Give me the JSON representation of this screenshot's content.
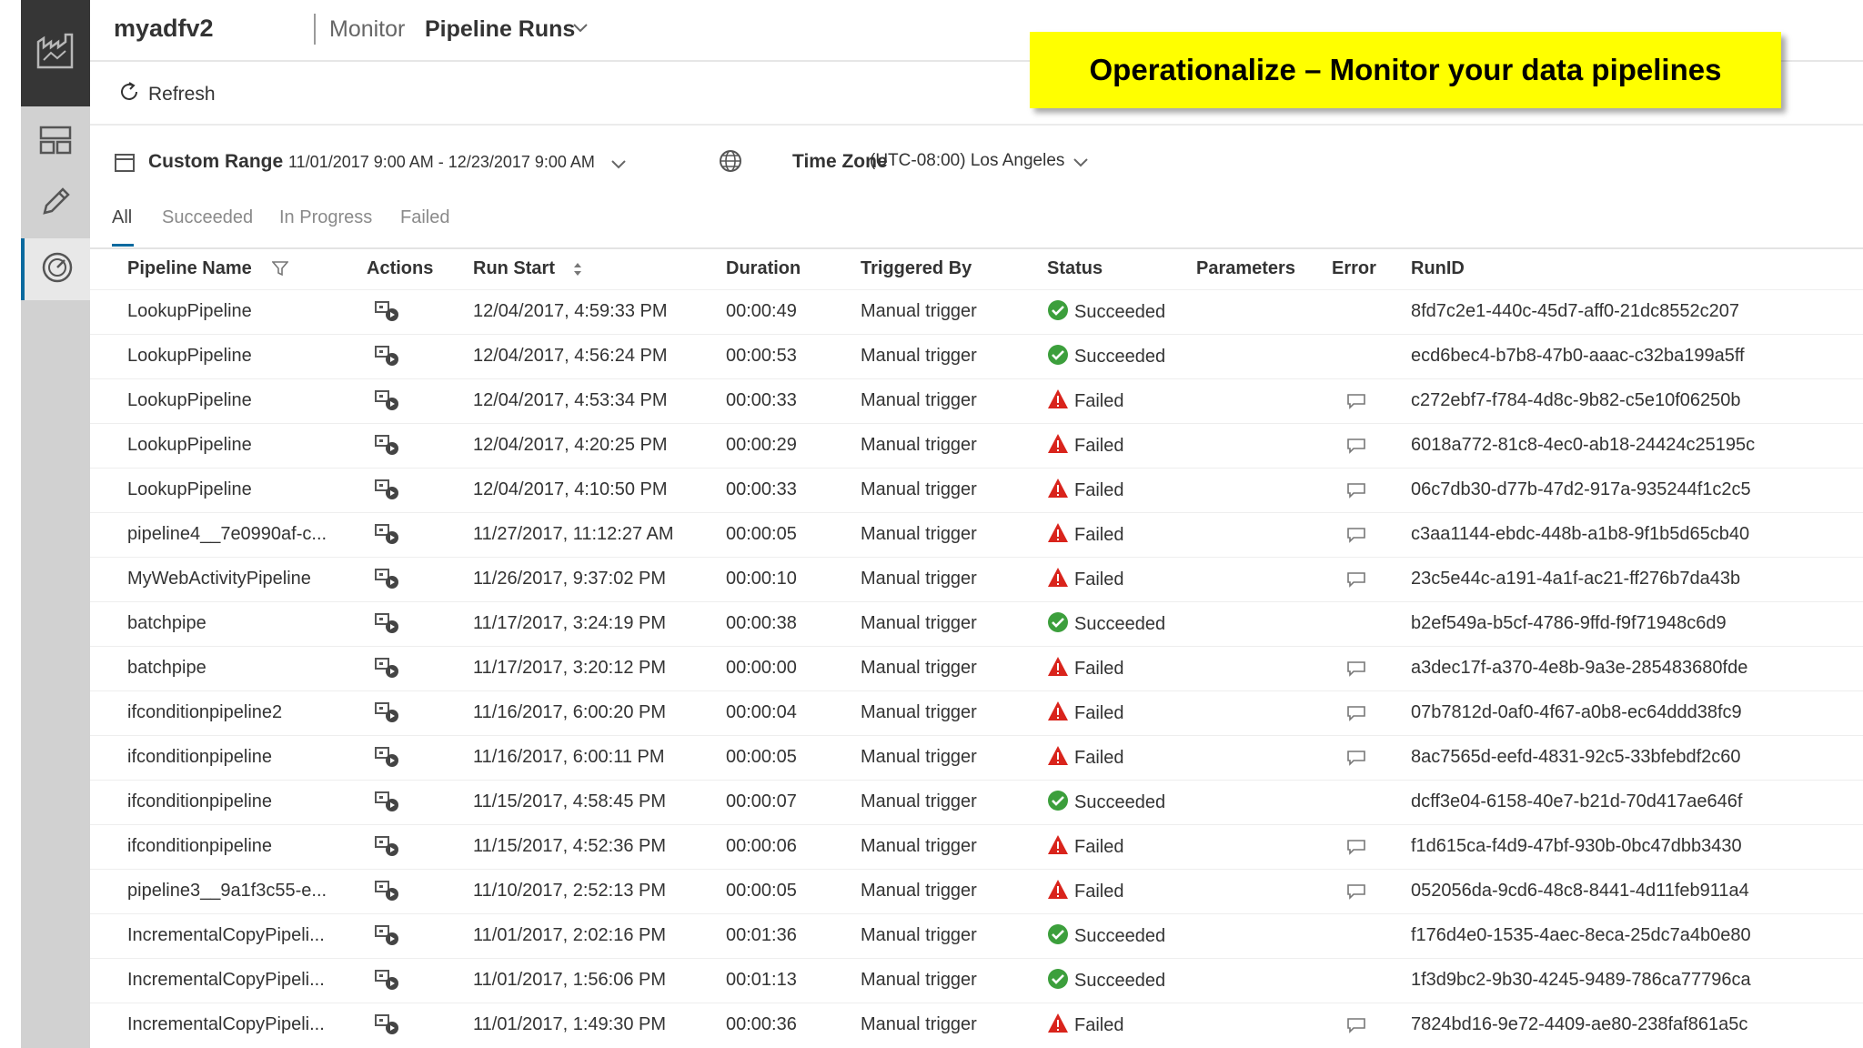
{
  "header": {
    "factory_name": "myadfv2",
    "breadcrumb_monitor": "Monitor",
    "breadcrumb_view": "Pipeline Runs"
  },
  "banner": {
    "text": "Operationalize – Monitor your data pipelines"
  },
  "toolbar": {
    "refresh_label": "Refresh"
  },
  "filters": {
    "range_label": "Custom Range",
    "range_value": "11/01/2017 9:00 AM - 12/23/2017 9:00 AM",
    "timezone_label": "Time Zone",
    "timezone_value": "(UTC-08:00) Los Angeles"
  },
  "tabs": [
    "All",
    "Succeeded",
    "In Progress",
    "Failed"
  ],
  "table": {
    "headers": {
      "name": "Pipeline Name",
      "actions": "Actions",
      "start": "Run Start",
      "duration": "Duration",
      "trigger": "Triggered By",
      "status": "Status",
      "parameters": "Parameters",
      "error": "Error",
      "runid": "RunID"
    },
    "rows": [
      {
        "name": "LookupPipeline",
        "start": "12/04/2017, 4:59:33 PM",
        "duration": "00:00:49",
        "trigger": "Manual trigger",
        "status": "Succeeded",
        "runid": "8fd7c2e1-440c-45d7-aff0-21dc8552c207"
      },
      {
        "name": "LookupPipeline",
        "start": "12/04/2017, 4:56:24 PM",
        "duration": "00:00:53",
        "trigger": "Manual trigger",
        "status": "Succeeded",
        "runid": "ecd6bec4-b7b8-47b0-aaac-c32ba199a5ff"
      },
      {
        "name": "LookupPipeline",
        "start": "12/04/2017, 4:53:34 PM",
        "duration": "00:00:33",
        "trigger": "Manual trigger",
        "status": "Failed",
        "runid": "c272ebf7-f784-4d8c-9b82-c5e10f06250b"
      },
      {
        "name": "LookupPipeline",
        "start": "12/04/2017, 4:20:25 PM",
        "duration": "00:00:29",
        "trigger": "Manual trigger",
        "status": "Failed",
        "runid": "6018a772-81c8-4ec0-ab18-24424c25195c"
      },
      {
        "name": "LookupPipeline",
        "start": "12/04/2017, 4:10:50 PM",
        "duration": "00:00:33",
        "trigger": "Manual trigger",
        "status": "Failed",
        "runid": "06c7db30-d77b-47d2-917a-935244f1c2c5"
      },
      {
        "name": "pipeline4__7e0990af-c...",
        "start": "11/27/2017, 11:12:27 AM",
        "duration": "00:00:05",
        "trigger": "Manual trigger",
        "status": "Failed",
        "runid": "c3aa1144-ebdc-448b-a1b8-9f1b5d65cb40"
      },
      {
        "name": "MyWebActivityPipeline",
        "start": "11/26/2017, 9:37:02 PM",
        "duration": "00:00:10",
        "trigger": "Manual trigger",
        "status": "Failed",
        "runid": "23c5e44c-a191-4a1f-ac21-ff276b7da43b"
      },
      {
        "name": "batchpipe",
        "start": "11/17/2017, 3:24:19 PM",
        "duration": "00:00:38",
        "trigger": "Manual trigger",
        "status": "Succeeded",
        "runid": "b2ef549a-b5cf-4786-9ffd-f9f71948c6d9"
      },
      {
        "name": "batchpipe",
        "start": "11/17/2017, 3:20:12 PM",
        "duration": "00:00:00",
        "trigger": "Manual trigger",
        "status": "Failed",
        "runid": "a3dec17f-a370-4e8b-9a3e-285483680fde"
      },
      {
        "name": "ifconditionpipeline2",
        "start": "11/16/2017, 6:00:20 PM",
        "duration": "00:00:04",
        "trigger": "Manual trigger",
        "status": "Failed",
        "runid": "07b7812d-0af0-4f67-a0b8-ec64ddd38fc9"
      },
      {
        "name": "ifconditionpipeline",
        "start": "11/16/2017, 6:00:11 PM",
        "duration": "00:00:05",
        "trigger": "Manual trigger",
        "status": "Failed",
        "runid": "8ac7565d-eefd-4831-92c5-33bfebdf2c60"
      },
      {
        "name": "ifconditionpipeline",
        "start": "11/15/2017, 4:58:45 PM",
        "duration": "00:00:07",
        "trigger": "Manual trigger",
        "status": "Succeeded",
        "runid": "dcff3e04-6158-40e7-b21d-70d417ae646f"
      },
      {
        "name": "ifconditionpipeline",
        "start": "11/15/2017, 4:52:36 PM",
        "duration": "00:00:06",
        "trigger": "Manual trigger",
        "status": "Failed",
        "runid": "f1d615ca-f4d9-47bf-930b-0bc47dbb3430"
      },
      {
        "name": "pipeline3__9a1f3c55-e...",
        "start": "11/10/2017, 2:52:13 PM",
        "duration": "00:00:05",
        "trigger": "Manual trigger",
        "status": "Failed",
        "runid": "052056da-9cd6-48c8-8441-4d11feb911a4"
      },
      {
        "name": "IncrementalCopyPipeli...",
        "start": "11/01/2017, 2:02:16 PM",
        "duration": "00:01:36",
        "trigger": "Manual trigger",
        "status": "Succeeded",
        "runid": "f176d4e0-1535-4aec-8eca-25dc7a4b0e80"
      },
      {
        "name": "IncrementalCopyPipeli...",
        "start": "11/01/2017, 1:56:06 PM",
        "duration": "00:01:13",
        "trigger": "Manual trigger",
        "status": "Succeeded",
        "runid": "1f3d9bc2-9b30-4245-9489-786ca77796ca"
      },
      {
        "name": "IncrementalCopyPipeli...",
        "start": "11/01/2017, 1:49:30 PM",
        "duration": "00:00:36",
        "trigger": "Manual trigger",
        "status": "Failed",
        "runid": "7824bd16-9e72-4409-ae80-238faf861a5c"
      }
    ]
  },
  "icons": {
    "rail": [
      "factory-icon",
      "dashboard-icon",
      "pencil-icon",
      "monitor-gauge-icon"
    ],
    "row_action": "rerun-icon",
    "error": "message-icon",
    "succeeded": "check-circle-icon",
    "failed": "warning-triangle-icon"
  },
  "colors": {
    "banner": "#ffff00",
    "succeeded": "#3c9f3c",
    "failed": "#d9241c",
    "accent": "#0b6a9f"
  }
}
